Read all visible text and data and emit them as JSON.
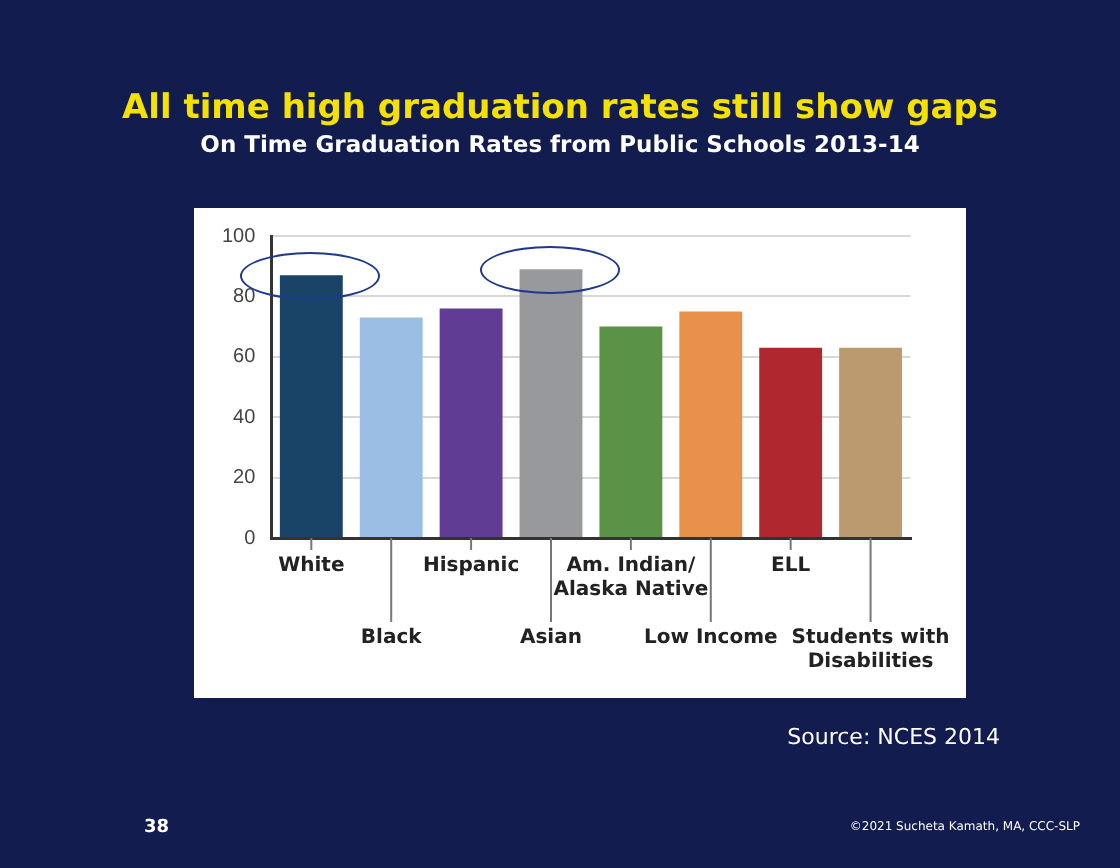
{
  "chart_data": {
    "type": "bar",
    "title": "All time high graduation rates still show gaps",
    "subtitle": "On Time Graduation Rates from Public Schools 2013-14",
    "categories": [
      "White",
      "Black",
      "Hispanic",
      "Asian",
      "Am. Indian/ Alaska Native",
      "Low Income",
      "ELL",
      "Students with Disabilities"
    ],
    "values": [
      87,
      73,
      76,
      89,
      70,
      75,
      63,
      63
    ],
    "colors": [
      "#1a4368",
      "#9bbfe4",
      "#613c94",
      "#97999c",
      "#5a9347",
      "#e8914a",
      "#b0272f",
      "#bc9a70"
    ],
    "ylim": [
      0,
      100
    ],
    "yticks": [
      0,
      20,
      40,
      60,
      80,
      100
    ],
    "grid": "y",
    "legend": false,
    "annotations": [
      "Source: NCES 2014",
      "38",
      "©2021 Sucheta Kamath, MA, CCC-SLP"
    ]
  }
}
